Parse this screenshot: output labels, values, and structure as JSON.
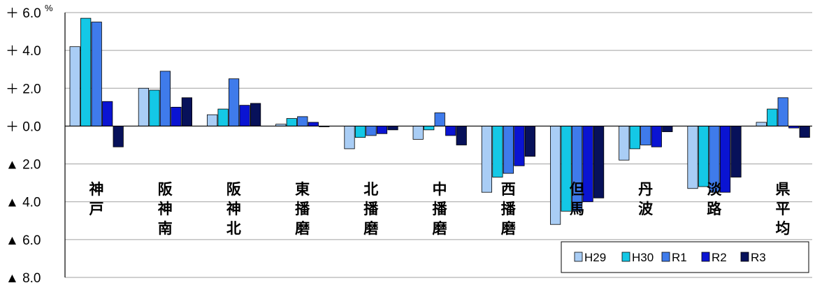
{
  "chart_data": {
    "type": "bar",
    "unit": "%",
    "ylim": [
      -8,
      6
    ],
    "y_ticks": [
      {
        "value": 6,
        "label": "＋ 6.0"
      },
      {
        "value": 4,
        "label": "＋ 4.0"
      },
      {
        "value": 2,
        "label": "＋ 2.0"
      },
      {
        "value": 0,
        "label": "＋ 0.0"
      },
      {
        "value": -2,
        "label": "▲ 2.0"
      },
      {
        "value": -4,
        "label": "▲ 4.0"
      },
      {
        "value": -6,
        "label": "▲ 6.0"
      },
      {
        "value": -8,
        "label": "▲ 8.0"
      }
    ],
    "grid": true,
    "legend_position": "bottom-right",
    "categories": [
      "神戸",
      "阪神南",
      "阪神北",
      "東播磨",
      "北播磨",
      "中播磨",
      "西播磨",
      "但馬",
      "丹波",
      "淡路",
      "県平均"
    ],
    "series": [
      {
        "name": "H29",
        "color": "#A9CDF5",
        "values": [
          4.2,
          2.0,
          0.6,
          0.1,
          -1.2,
          -0.7,
          -3.5,
          -5.2,
          -1.8,
          -3.3,
          0.2
        ]
      },
      {
        "name": "H30",
        "color": "#14C8E6",
        "values": [
          5.7,
          1.9,
          0.9,
          0.4,
          -0.6,
          -0.2,
          -2.7,
          -4.5,
          -1.2,
          -3.2,
          0.9
        ]
      },
      {
        "name": "R1",
        "color": "#3F7BEB",
        "values": [
          5.5,
          2.9,
          2.5,
          0.5,
          -0.5,
          0.7,
          -2.5,
          -4.5,
          -1.0,
          -3.5,
          1.5
        ]
      },
      {
        "name": "R2",
        "color": "#0A14D2",
        "values": [
          1.3,
          1.0,
          1.1,
          0.2,
          -0.4,
          -0.5,
          -2.1,
          -4.0,
          -1.1,
          -3.5,
          -0.1
        ]
      },
      {
        "name": "R3",
        "color": "#07115A",
        "values": [
          -1.1,
          1.5,
          1.2,
          0.0,
          -0.2,
          -1.0,
          -1.6,
          -3.8,
          -0.3,
          -2.7,
          -0.6
        ]
      }
    ]
  }
}
